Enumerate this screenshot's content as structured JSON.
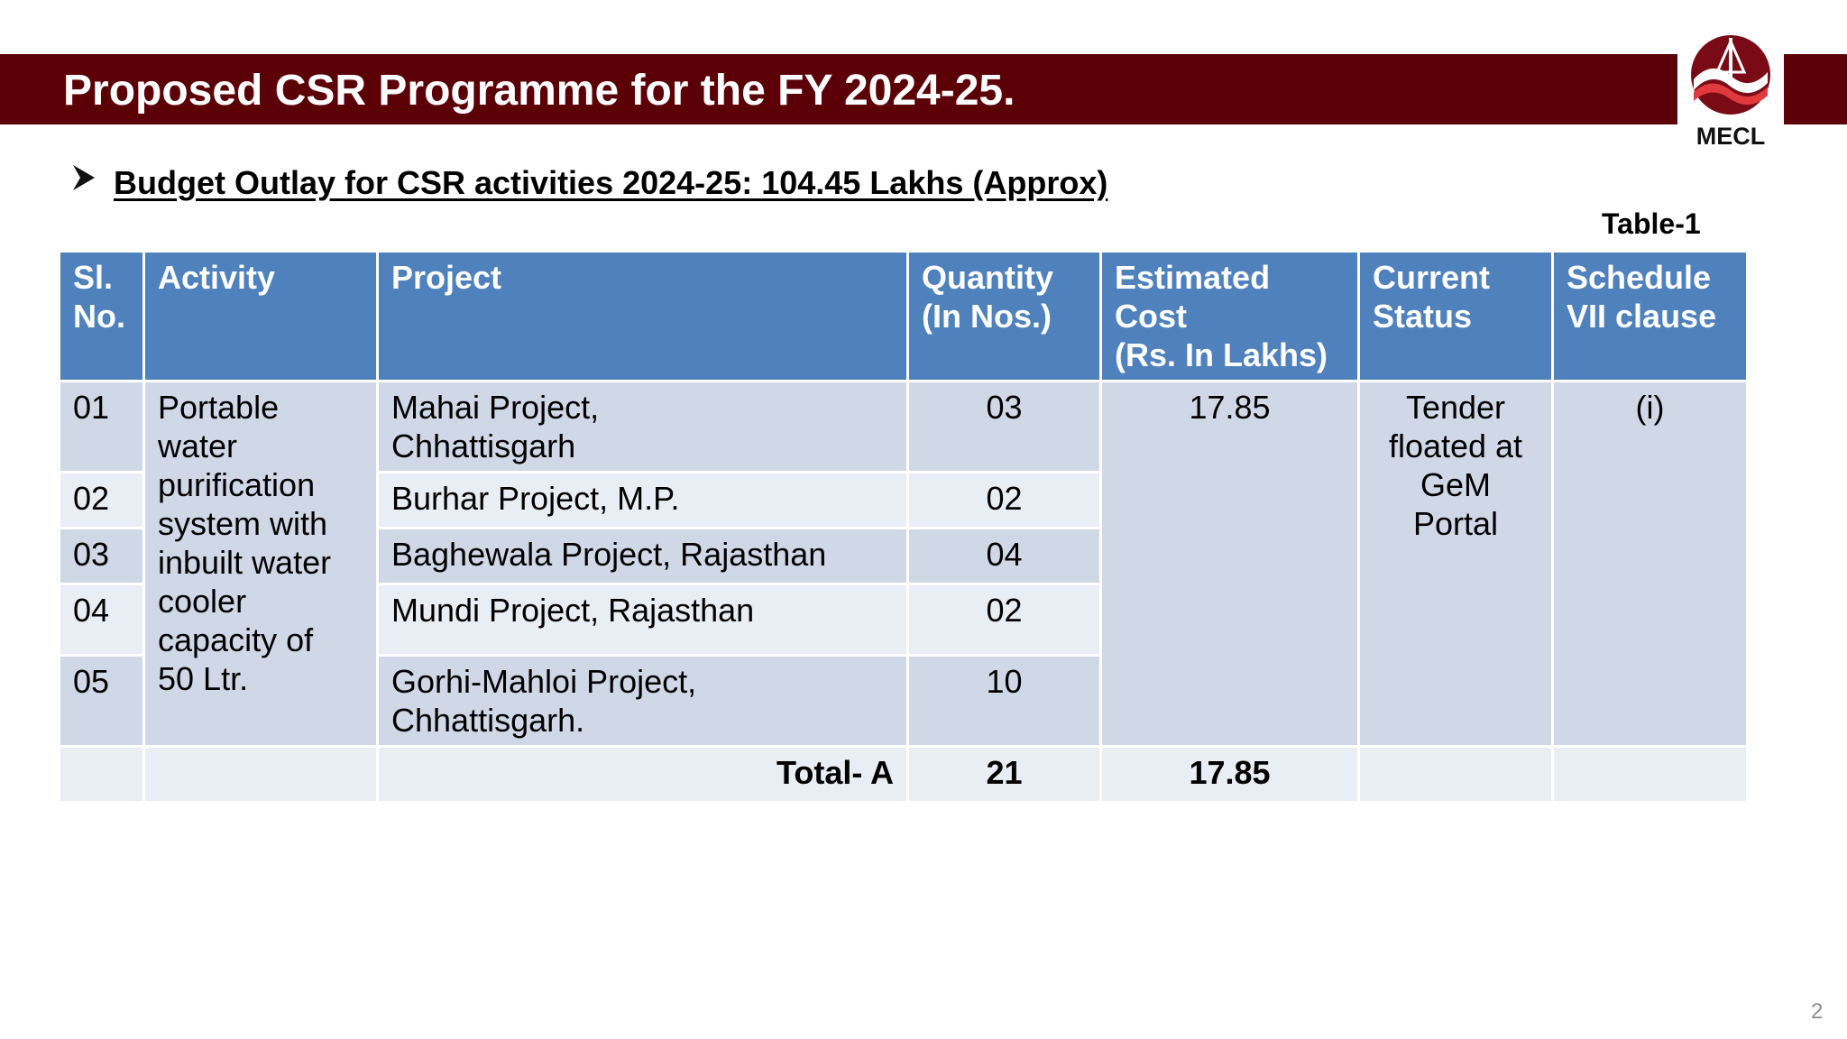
{
  "header": {
    "title": "Proposed CSR Programme for the FY 2024-25.",
    "bar_color": "#5c0008"
  },
  "logo": {
    "text": "MECL",
    "icon": "mecl-logo-icon"
  },
  "budget": {
    "icon": "arrow-bullet-icon",
    "text": "Budget Outlay  for CSR activities 2024-25: 104.45 Lakhs (Approx)"
  },
  "table_label": "Table-1",
  "table": {
    "headers": {
      "sl_no": [
        "Sl.",
        "No."
      ],
      "activity": "Activity",
      "project": "Project",
      "quantity": [
        "Quantity",
        "(In Nos.)"
      ],
      "cost": [
        "Estimated",
        "Cost",
        "(Rs. In Lakhs)"
      ],
      "status": [
        "Current",
        "Status"
      ],
      "schedule": [
        "Schedule",
        "VII clause"
      ]
    },
    "activity": [
      "Portable",
      "water",
      "purification",
      "system with",
      "inbuilt water",
      "cooler",
      "capacity of",
      "50 Ltr."
    ],
    "rows": [
      {
        "sl": "01",
        "project": [
          "Mahai Project,",
          "Chhattisgarh"
        ],
        "qty": "03"
      },
      {
        "sl": "02",
        "project": [
          "Burhar Project, M.P."
        ],
        "qty": "02"
      },
      {
        "sl": "03",
        "project": [
          "Baghewala Project, Rajasthan"
        ],
        "qty": "04"
      },
      {
        "sl": "04",
        "project": [
          "Mundi Project, Rajasthan"
        ],
        "qty": "02"
      },
      {
        "sl": "05",
        "project": [
          "Gorhi-Mahloi Project,",
          "Chhattisgarh."
        ],
        "qty": "10"
      }
    ],
    "estimated_cost": "17.85",
    "current_status": [
      "Tender",
      "floated at",
      "GeM",
      "Portal"
    ],
    "schedule_clause": "(i)",
    "total": {
      "label": "Total- A",
      "qty": "21",
      "cost": "17.85"
    },
    "header_color": "#4f81bd",
    "row_colors": [
      "#d0d8e8",
      "#e9edf4"
    ]
  },
  "page_number": "2"
}
